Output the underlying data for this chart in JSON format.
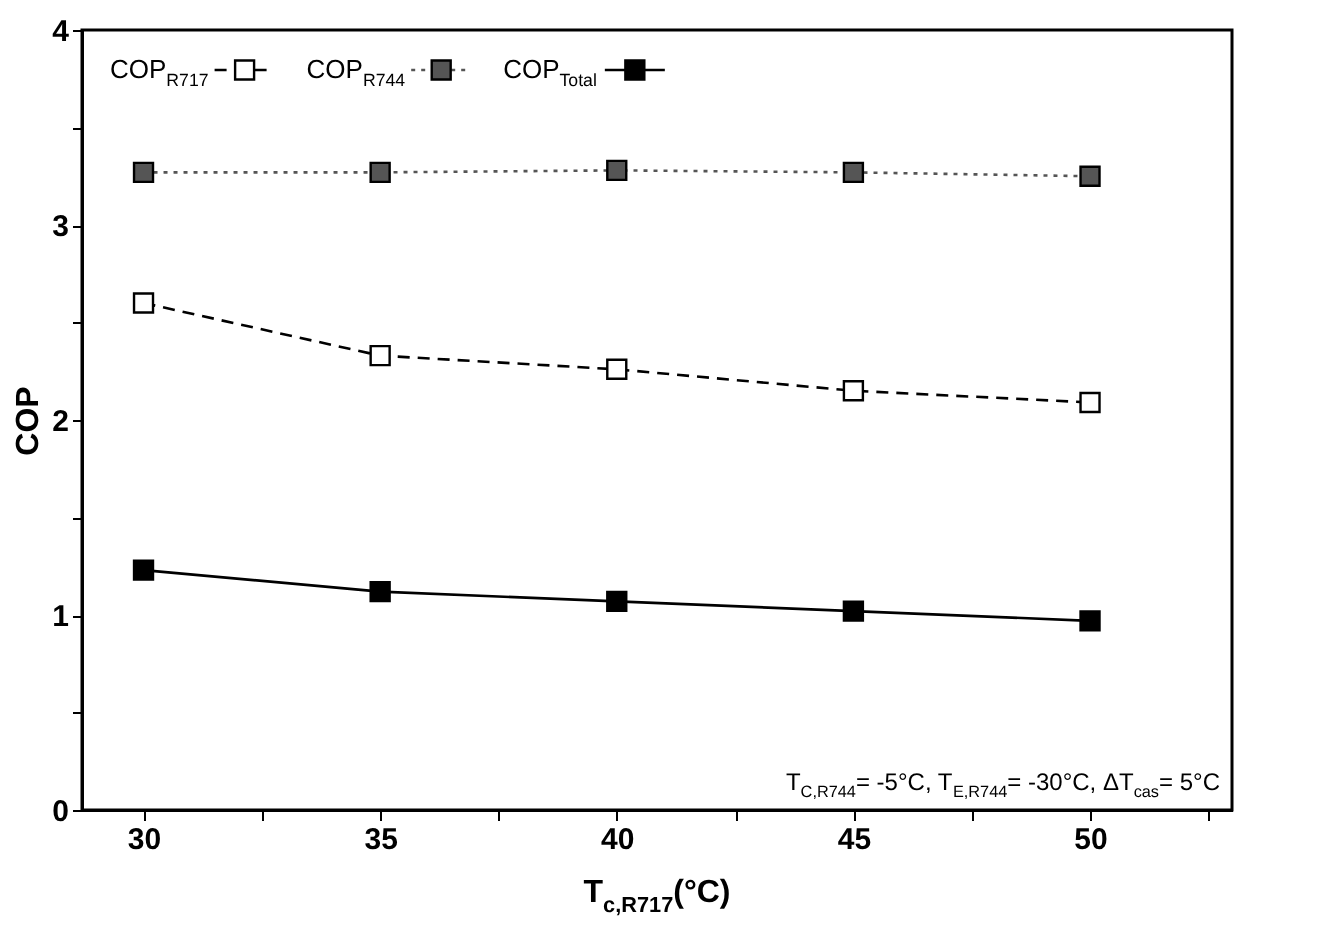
{
  "chart_data": {
    "type": "line",
    "xlabel": "T$_{c,R717}$(°C)",
    "ylabel": "COP",
    "x": [
      30,
      35,
      40,
      45,
      50
    ],
    "series": [
      {
        "name": "COP$_{R717}$",
        "color": "#000000",
        "line_style": "dashed",
        "marker": "square",
        "values": [
          2.6,
          2.33,
          2.26,
          2.15,
          2.09
        ]
      },
      {
        "name": "COP$_{R744}$",
        "color": "#555555",
        "line_style": "dotted",
        "marker": "square",
        "values": [
          3.27,
          3.27,
          3.28,
          3.27,
          3.25
        ]
      },
      {
        "name": "COP$_{Total}$",
        "color": "#000000",
        "line_style": "solid",
        "marker": "square",
        "values": [
          1.23,
          1.12,
          1.07,
          1.02,
          0.97
        ]
      }
    ],
    "xlim": [
      28.7,
      53
    ],
    "xticks": [
      30,
      {
        "value": 32.5,
        "label": null
      },
      35,
      {
        "value": 37.5,
        "label": null
      },
      40,
      {
        "value": 42.5,
        "label": null
      },
      45,
      {
        "value": 47.5,
        "label": null
      },
      50,
      {
        "value": 52.5,
        "label": null
      }
    ],
    "ylim": [
      0,
      4
    ],
    "yticks": [
      0,
      {
        "value": 0.5,
        "label": null
      },
      1,
      {
        "value": 1.5,
        "label": null
      },
      2,
      {
        "value": 2.5,
        "label": null
      },
      3,
      {
        "value": 3.5,
        "label": null
      },
      4
    ],
    "grid": false,
    "legend": "top left",
    "annotations": [
      "T$_{C,R744}$= -5°C, T$_{E,R744}$= -30°C, ΔT$_{cas}$= 5°C"
    ]
  }
}
